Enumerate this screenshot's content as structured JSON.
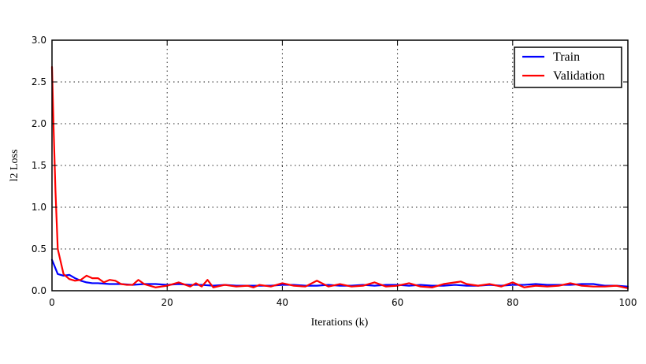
{
  "chart_data": {
    "type": "line",
    "xlabel": "Iterations (k)",
    "ylabel": "l2 Loss",
    "xlim": [
      0,
      100
    ],
    "ylim": [
      0,
      3.0
    ],
    "xticks": [
      0,
      20,
      40,
      60,
      80,
      100
    ],
    "xtick_labels": [
      "0",
      "20",
      "40",
      "60",
      "80",
      "100"
    ],
    "yticks": [
      0,
      0.5,
      1.0,
      1.5,
      2.0,
      2.5,
      3.0
    ],
    "ytick_labels": [
      "0.0",
      "0.5",
      "1.0",
      "1.5",
      "2.0",
      "2.5",
      "3.0"
    ],
    "grid": true,
    "legend_position": "top-right",
    "series": [
      {
        "name": "Train",
        "color": "#0000ff",
        "x": [
          0,
          1,
          2,
          3,
          4,
          5,
          6,
          7,
          8,
          10,
          12,
          14,
          16,
          18,
          20,
          22,
          24,
          26,
          28,
          30,
          32,
          34,
          36,
          38,
          40,
          42,
          44,
          46,
          48,
          50,
          52,
          54,
          56,
          58,
          60,
          62,
          64,
          66,
          68,
          70,
          72,
          74,
          76,
          78,
          80,
          82,
          84,
          86,
          88,
          90,
          92,
          94,
          96,
          98,
          100
        ],
        "y": [
          0.37,
          0.2,
          0.18,
          0.19,
          0.15,
          0.12,
          0.1,
          0.09,
          0.09,
          0.08,
          0.08,
          0.07,
          0.08,
          0.08,
          0.07,
          0.08,
          0.07,
          0.07,
          0.06,
          0.07,
          0.06,
          0.06,
          0.06,
          0.06,
          0.07,
          0.07,
          0.06,
          0.06,
          0.07,
          0.06,
          0.06,
          0.07,
          0.06,
          0.07,
          0.07,
          0.06,
          0.07,
          0.06,
          0.06,
          0.07,
          0.06,
          0.06,
          0.07,
          0.06,
          0.07,
          0.07,
          0.08,
          0.07,
          0.07,
          0.07,
          0.08,
          0.08,
          0.06,
          0.06,
          0.05
        ]
      },
      {
        "name": "Validation",
        "color": "#ff0000",
        "x": [
          0,
          0.3,
          0.6,
          1,
          1.5,
          2,
          3,
          4,
          5,
          6,
          7,
          8,
          9,
          10,
          11,
          12,
          13,
          14,
          15,
          16,
          17,
          18,
          19,
          20,
          22,
          24,
          25,
          26,
          27,
          28,
          30,
          32,
          34,
          35,
          36,
          38,
          40,
          42,
          44,
          46,
          48,
          50,
          52,
          54,
          56,
          58,
          60,
          62,
          64,
          66,
          68,
          70,
          71,
          72,
          74,
          76,
          78,
          80,
          82,
          84,
          86,
          88,
          90,
          92,
          94,
          96,
          98,
          100
        ],
        "y": [
          2.68,
          1.9,
          1.2,
          0.5,
          0.35,
          0.2,
          0.14,
          0.12,
          0.13,
          0.18,
          0.15,
          0.15,
          0.1,
          0.13,
          0.12,
          0.08,
          0.07,
          0.07,
          0.13,
          0.08,
          0.06,
          0.04,
          0.05,
          0.06,
          0.1,
          0.05,
          0.09,
          0.05,
          0.13,
          0.04,
          0.07,
          0.05,
          0.06,
          0.04,
          0.07,
          0.05,
          0.09,
          0.06,
          0.05,
          0.12,
          0.05,
          0.08,
          0.05,
          0.06,
          0.1,
          0.05,
          0.06,
          0.09,
          0.05,
          0.04,
          0.08,
          0.1,
          0.11,
          0.08,
          0.06,
          0.08,
          0.05,
          0.1,
          0.04,
          0.06,
          0.05,
          0.06,
          0.09,
          0.06,
          0.05,
          0.05,
          0.06,
          0.03
        ]
      }
    ]
  }
}
